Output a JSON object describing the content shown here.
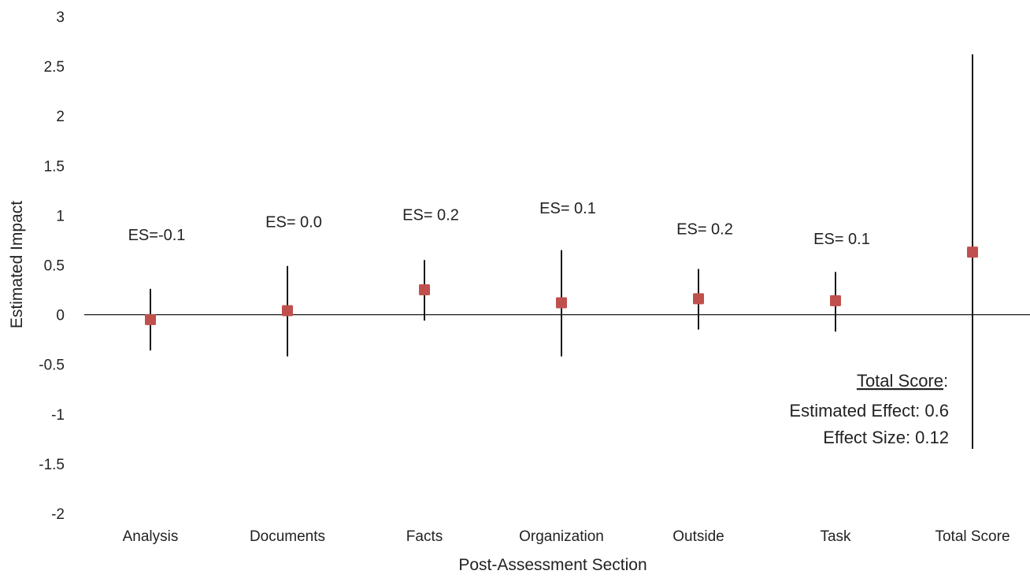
{
  "chart_data": {
    "type": "scatter",
    "title": "",
    "xlabel": "Post-Assessment Section",
    "ylabel": "Estimated Impact",
    "categories": [
      "Analysis",
      "Documents",
      "Facts",
      "Organization",
      "Outside",
      "Task",
      "Total Score"
    ],
    "ylim": [
      -2,
      3
    ],
    "yticks": [
      "3",
      "2.5",
      "2",
      "1.5",
      "1",
      "0.5",
      "0",
      "-0.5",
      "-1",
      "-1.5",
      "-2"
    ],
    "grid": false,
    "legend": "none",
    "series": [
      {
        "values": [
          -0.05,
          0.04,
          0.25,
          0.12,
          0.16,
          0.14,
          0.63
        ],
        "ci_low": [
          -0.36,
          -0.42,
          -0.06,
          -0.42,
          -0.15,
          -0.17,
          -1.35
        ],
        "ci_high": [
          0.26,
          0.49,
          0.55,
          0.65,
          0.46,
          0.43,
          2.62
        ]
      }
    ],
    "es_labels": [
      {
        "text": "ES=-0.1",
        "y": 0.75
      },
      {
        "text": "ES= 0.0",
        "y": 0.88
      },
      {
        "text": "ES= 0.2",
        "y": 0.95
      },
      {
        "text": "ES= 0.1",
        "y": 1.02
      },
      {
        "text": "ES= 0.2",
        "y": 0.81
      },
      {
        "text": "ES= 0.1",
        "y": 0.71
      }
    ],
    "annotation": {
      "heading": "Total Score",
      "colon": ":",
      "line1": "Estimated Effect: 0.6",
      "line2": "Effect Size: 0.12"
    },
    "colors": {
      "marker": "#c0504d",
      "errorbar": "#1a1a1a",
      "axis": "#1a1a1a",
      "text": "#222222"
    }
  }
}
